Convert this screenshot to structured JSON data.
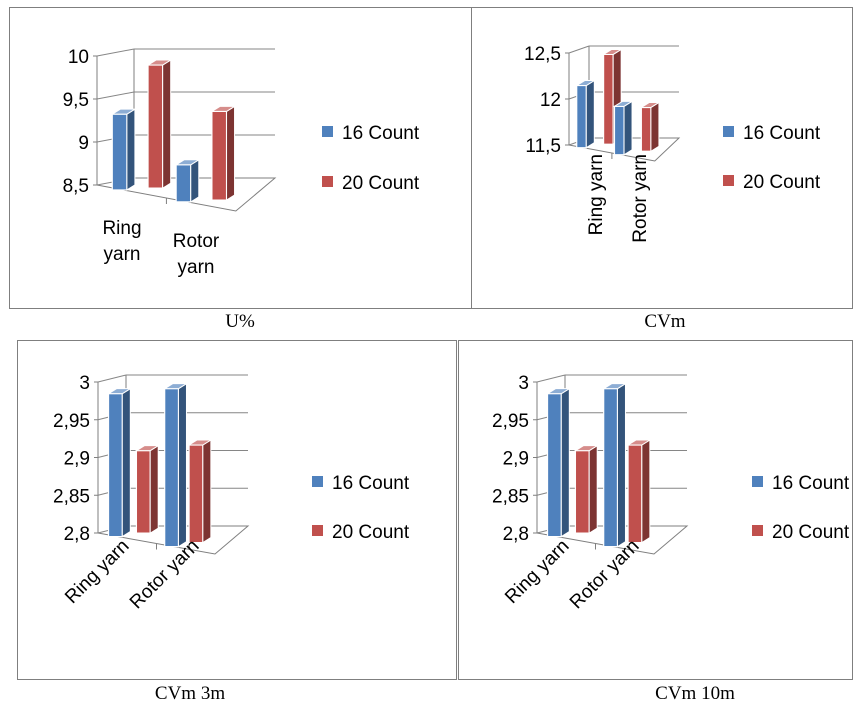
{
  "top_text": "",
  "colors": {
    "series_1": "#4f81bd",
    "series_2": "#c0504d",
    "axis": "#7f7f7f",
    "grid": "#868686"
  },
  "chart_data": [
    {
      "type": "bar",
      "caption": "U%",
      "categories": [
        "Ring yarn",
        "Rotor yarn"
      ],
      "category_label_style": "wrapped",
      "series": [
        {
          "name": "16 Count",
          "values": [
            9.3,
            8.85
          ]
        },
        {
          "name": "20 Count",
          "values": [
            9.85,
            9.45
          ]
        }
      ],
      "ylim": [
        8.5,
        10
      ],
      "yticks": [
        "8,5",
        "9",
        "9,5",
        "10"
      ],
      "ytick_values": [
        8.5,
        9,
        9.5,
        10
      ],
      "grid": true,
      "legend_position": "right"
    },
    {
      "type": "bar",
      "caption": "CVm",
      "categories": [
        "Ring yarn",
        "Rotor yarn"
      ],
      "category_label_style": "vertical",
      "series": [
        {
          "name": "16 Count",
          "values": [
            12.1,
            11.95
          ]
        },
        {
          "name": "20 Count",
          "values": [
            12.4,
            11.9
          ]
        }
      ],
      "ylim": [
        11.5,
        12.5
      ],
      "yticks": [
        "11,5",
        "12",
        "12,5"
      ],
      "ytick_values": [
        11.5,
        12,
        12.5
      ],
      "grid": true,
      "legend_position": "right"
    },
    {
      "type": "bar",
      "caption": "CVm 3m",
      "categories": [
        "Ring yarn",
        "Rotor yarn"
      ],
      "category_label_style": "diagonal",
      "series": [
        {
          "name": "16 Count",
          "values": [
            2.98,
            3.0
          ]
        },
        {
          "name": "20 Count",
          "values": [
            2.9,
            2.92
          ]
        }
      ],
      "ylim": [
        2.8,
        3.0
      ],
      "yticks": [
        "2,8",
        "2,85",
        "2,9",
        "2,95",
        "3"
      ],
      "ytick_values": [
        2.8,
        2.85,
        2.9,
        2.95,
        3.0
      ],
      "grid": true,
      "legend_position": "right"
    },
    {
      "type": "bar",
      "caption": "CVm 10m",
      "categories": [
        "Ring yarn",
        "Rotor yarn"
      ],
      "category_label_style": "diagonal",
      "series": [
        {
          "name": "16 Count",
          "values": [
            2.98,
            3.0
          ]
        },
        {
          "name": "20 Count",
          "values": [
            2.9,
            2.92
          ]
        }
      ],
      "ylim": [
        2.8,
        3.0
      ],
      "yticks": [
        "2,8",
        "2,85",
        "2,9",
        "2,95",
        "3"
      ],
      "ytick_values": [
        2.8,
        2.85,
        2.9,
        2.95,
        3.0
      ],
      "grid": true,
      "legend_position": "right"
    }
  ]
}
